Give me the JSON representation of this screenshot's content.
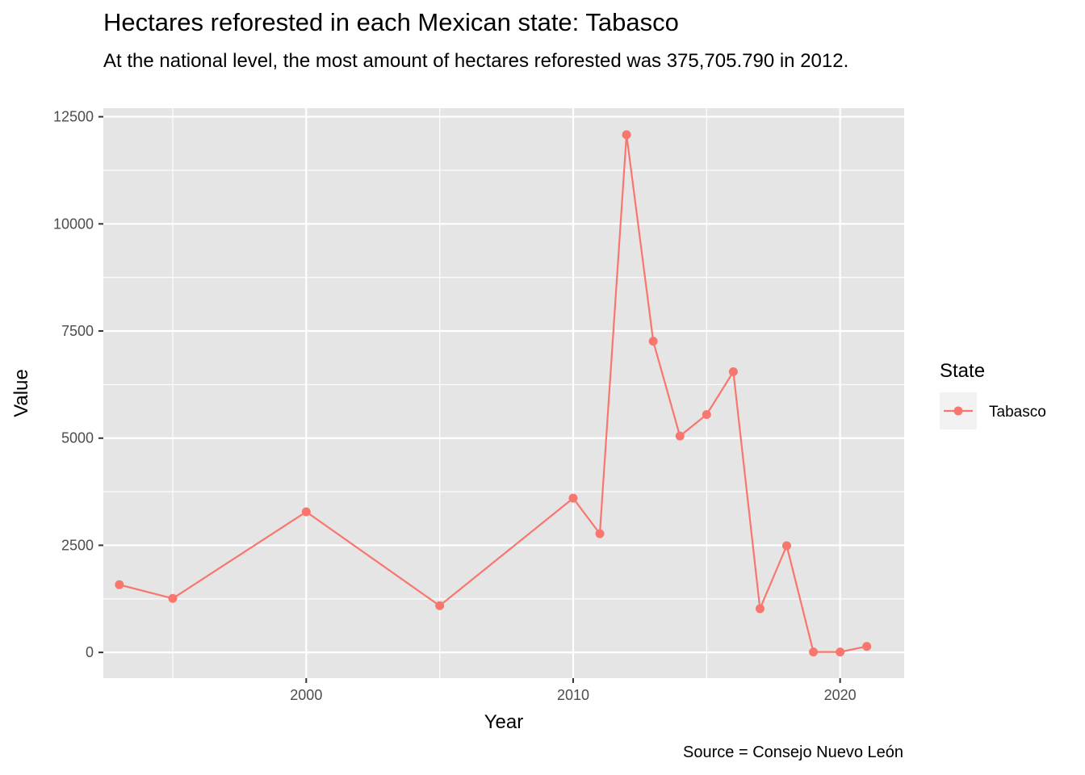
{
  "chart_data": {
    "type": "line",
    "title": "Hectares reforested in each Mexican state: Tabasco",
    "subtitle": "At the national level, the most amount of hectares reforested was 375,705.790 in 2012.",
    "caption": "Source = Consejo Nuevo León",
    "xlabel": "Year",
    "ylabel": "Value",
    "xlim": [
      1992.4,
      2022.4
    ],
    "ylim": [
      -600,
      12700
    ],
    "x_ticks": [
      2000,
      2010,
      2020
    ],
    "y_ticks": [
      0,
      2500,
      5000,
      7500,
      10000,
      12500
    ],
    "grid": true,
    "legend": {
      "title": "State",
      "position": "right"
    },
    "colors": {
      "panel": "#E5E5E5",
      "grid": "#FFFFFF",
      "series": "#F8766D",
      "legend_key": "#F2F2F2"
    },
    "series": [
      {
        "name": "Tabasco",
        "x": [
          1993,
          1995,
          2000,
          2005,
          2010,
          2011,
          2012,
          2013,
          2014,
          2015,
          2016,
          2017,
          2018,
          2019,
          2020,
          2021
        ],
        "values": [
          1580,
          1260,
          3280,
          1090,
          3600,
          2770,
          12080,
          7260,
          5050,
          5550,
          6550,
          1020,
          2490,
          10,
          10,
          140
        ]
      }
    ]
  }
}
